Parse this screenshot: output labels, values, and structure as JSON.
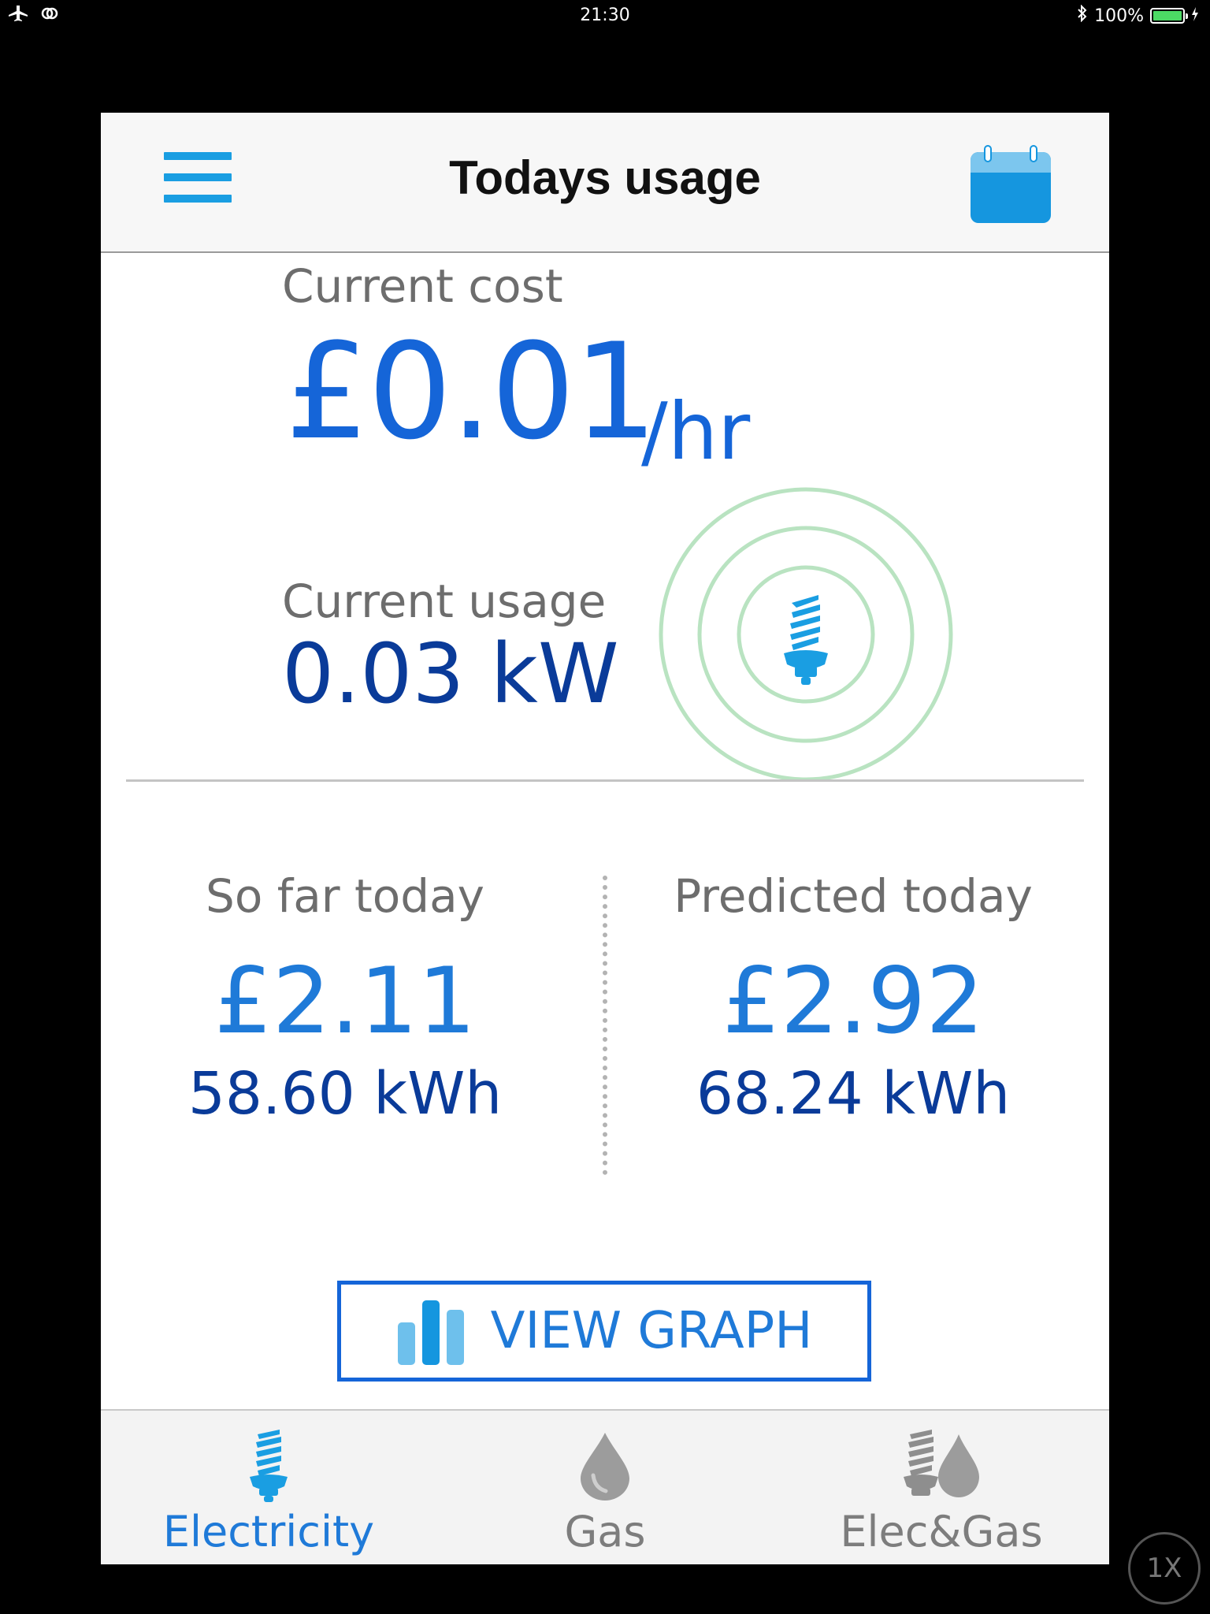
{
  "status_bar": {
    "time": "21:30",
    "battery_percent": "100%",
    "battery_level": 1.0,
    "left_icons": [
      "airplane-mode-icon",
      "wifi-link-icon"
    ],
    "right_icons": [
      "bluetooth-icon",
      "battery-charging-icon"
    ]
  },
  "header": {
    "title": "Todays usage",
    "menu_icon": "hamburger-menu-icon",
    "calendar_icon": "calendar-icon"
  },
  "current": {
    "cost_label": "Current cost",
    "cost_value": "£0.01",
    "cost_unit": "/hr",
    "usage_label": "Current usage",
    "usage_value": "0.03 kW",
    "indicator_icon": "lightbulb-icon"
  },
  "summary": {
    "so_far": {
      "label": "So far today",
      "cost": "£2.11",
      "kwh": "58.60 kWh"
    },
    "predicted": {
      "label": "Predicted today",
      "cost": "£2.92",
      "kwh": "68.24 kWh"
    }
  },
  "view_graph": {
    "label": "VIEW GRAPH",
    "icon": "bar-chart-icon"
  },
  "tabs": [
    {
      "label": "Electricity",
      "icon": "electricity-bulb-icon",
      "active": true
    },
    {
      "label": "Gas",
      "icon": "gas-drop-icon",
      "active": false
    },
    {
      "label": "Elec&Gas",
      "icon": "elec-gas-icon",
      "active": false
    }
  ],
  "zoom": {
    "label": "1X"
  },
  "colors": {
    "accent_blue": "#1565d8",
    "dark_blue": "#0a3b99",
    "icon_blue": "#1a9ee2",
    "ring_green": "#b9e3c1",
    "gray_text": "#6d6d6d"
  }
}
